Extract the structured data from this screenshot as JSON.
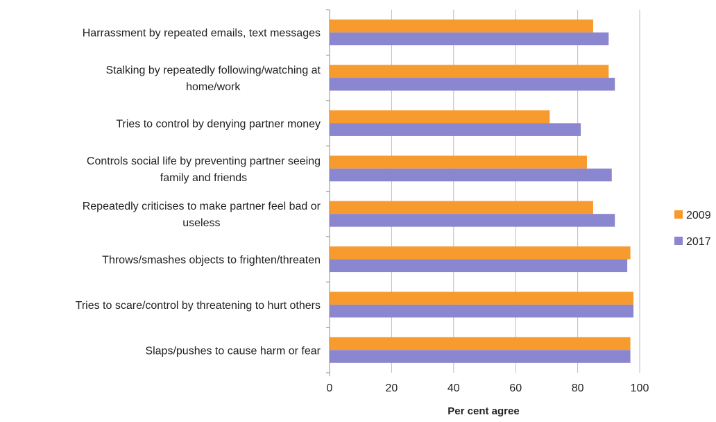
{
  "chart_data": {
    "type": "bar",
    "orientation": "horizontal",
    "categories": [
      [
        "Harrassment by repeated emails, text messages"
      ],
      [
        "Stalking by repeatedly following/watching at",
        "home/work"
      ],
      [
        "Tries to control by denying partner money"
      ],
      [
        "Controls social life by preventing partner seeing",
        "family and friends"
      ],
      [
        "Repeatedly criticises to make partner feel bad or",
        "useless"
      ],
      [
        "Throws/smashes objects to frighten/threaten"
      ],
      [
        "Tries to scare/control by threatening to hurt others"
      ],
      [
        "Slaps/pushes to cause harm or fear"
      ]
    ],
    "series": [
      {
        "name": "2009",
        "color": "#f79b2e",
        "values": [
          85,
          90,
          71,
          83,
          85,
          97,
          98,
          97
        ]
      },
      {
        "name": "2017",
        "color": "#8a86cf",
        "values": [
          90,
          92,
          81,
          91,
          92,
          96,
          98,
          97
        ]
      }
    ],
    "xlabel": "Per cent agree",
    "xlim": [
      0,
      100
    ],
    "xticks": [
      0,
      20,
      40,
      60,
      80,
      100
    ],
    "grid": true,
    "legend_position": "right"
  }
}
